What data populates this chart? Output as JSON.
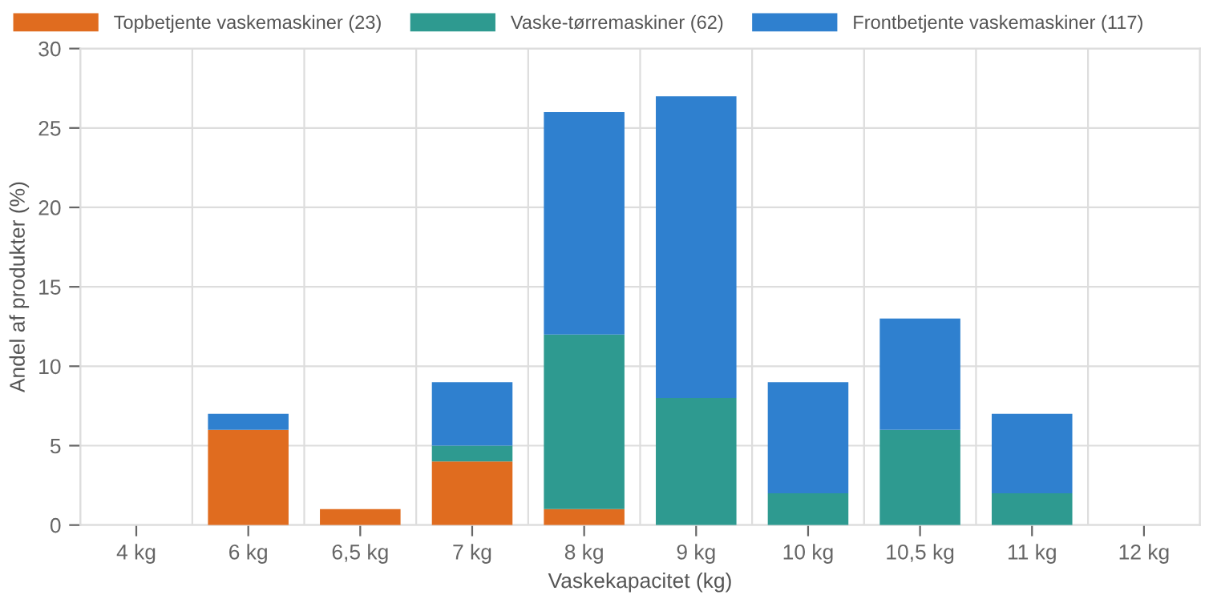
{
  "chart_data": {
    "type": "bar",
    "stacked": true,
    "xlabel": "Vaskekapacitet (kg)",
    "ylabel": "Andel af produkter (%)",
    "categories": [
      "4 kg",
      "6 kg",
      "6,5 kg",
      "7 kg",
      "8 kg",
      "9 kg",
      "10 kg",
      "10,5 kg",
      "11 kg",
      "12 kg"
    ],
    "series": [
      {
        "name": "Topbetjente vaskemaskiner (23)",
        "color": "#e06c1f",
        "values": [
          0,
          6,
          1,
          4,
          1,
          0,
          0,
          0,
          0,
          0
        ]
      },
      {
        "name": "Vaske-tørremaskiner (62)",
        "color": "#2e9a90",
        "values": [
          0,
          0,
          0,
          1,
          11,
          8,
          2,
          6,
          2,
          0
        ]
      },
      {
        "name": "Frontbetjente vaskemaskiner (117)",
        "color": "#2f80cf",
        "values": [
          0,
          1,
          0,
          4,
          14,
          19,
          7,
          7,
          5,
          0
        ]
      }
    ],
    "ylim": [
      0,
      30
    ],
    "yticks": [
      0,
      5,
      10,
      15,
      20,
      25,
      30
    ],
    "grid": true,
    "legend": "top"
  }
}
